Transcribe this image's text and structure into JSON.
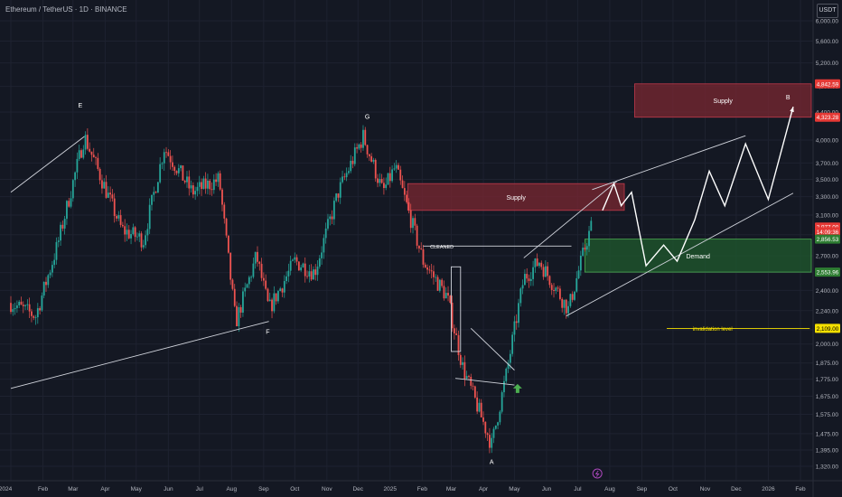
{
  "header": {
    "symbol_title": "Ethereum / TetherUS · 1D · BINANCE",
    "currency": "USDT"
  },
  "colors": {
    "background": "#141823",
    "up_candle": "#26a69a",
    "down_candle": "#ef5350",
    "supply_zone": "#7a2732",
    "demand_zone": "#1f5a2e",
    "projection": "#ffffff",
    "invalidation": "#f5e000"
  },
  "chart_data": {
    "type": "candlestick",
    "x_ticks": [
      "2024",
      "Feb",
      "Mar",
      "Apr",
      "May",
      "Jun",
      "Jul",
      "Aug",
      "Sep",
      "Oct",
      "Nov",
      "Dec",
      "2025",
      "Feb",
      "Mar",
      "Apr",
      "May",
      "Jun",
      "Jul",
      "Aug",
      "Sep",
      "Oct",
      "Nov",
      "Dec",
      "2026",
      "Feb"
    ],
    "y_ticks": [
      6000,
      5600,
      5200,
      4800,
      4400,
      4000,
      3700,
      3500,
      3300,
      3100,
      2900,
      2700,
      2550,
      2400,
      2240,
      2100,
      2000,
      1875,
      1775,
      1675,
      1575,
      1475,
      1395,
      1320
    ],
    "y_tick_labels": [
      "6,000.00",
      "5,600.00",
      "5,200.00",
      "4,800.00",
      "4,400.00",
      "4,000.00",
      "3,700.00",
      "3,500.00",
      "3,300.00",
      "3,100.00",
      "2,900.00",
      "2,700.00",
      "2,550.00",
      "2,400.00",
      "2,240.00",
      "2,100.00",
      "2,000.00",
      "1,875.00",
      "1,775.00",
      "1,675.00",
      "1,575.00",
      "1,475.00",
      "1,395.00",
      "1,320.00"
    ],
    "y_scale": "log",
    "anchor_points": [
      [
        "2024-01-01",
        2300
      ],
      [
        "2024-01-25",
        2200
      ],
      [
        "2024-02-15",
        2800
      ],
      [
        "2024-03-12",
        4050
      ],
      [
        "2024-04-17",
        2950
      ],
      [
        "2024-05-08",
        2850
      ],
      [
        "2024-05-28",
        3900
      ],
      [
        "2024-06-24",
        3350
      ],
      [
        "2024-07-20",
        3500
      ],
      [
        "2024-08-05",
        2150
      ],
      [
        "2024-08-25",
        2700
      ],
      [
        "2024-09-06",
        2250
      ],
      [
        "2024-10-01",
        2650
      ],
      [
        "2024-10-20",
        2550
      ],
      [
        "2024-11-12",
        3350
      ],
      [
        "2024-12-06",
        4050
      ],
      [
        "2024-12-25",
        3350
      ],
      [
        "2025-01-06",
        3650
      ],
      [
        "2025-02-02",
        2650
      ],
      [
        "2025-02-25",
        2350
      ],
      [
        "2025-03-12",
        1850
      ],
      [
        "2025-04-09",
        1420
      ],
      [
        "2025-04-23",
        1800
      ],
      [
        "2025-05-10",
        2500
      ],
      [
        "2025-05-25",
        2650
      ],
      [
        "2025-06-22",
        2250
      ],
      [
        "2025-07-10",
        2850
      ],
      [
        "2025-07-14",
        2977
      ]
    ],
    "price_labels": [
      {
        "text": "4,842.59",
        "value": 4842.59,
        "color": "#e53935"
      },
      {
        "text": "4,323.28",
        "value": 4323.28,
        "color": "#e53935"
      },
      {
        "text": "2,977.00",
        "value": 2977,
        "color": "#e53935"
      },
      {
        "text": "14:09:36",
        "value": 2930,
        "color": "#e53935"
      },
      {
        "text": "2,856.53",
        "value": 2856.53,
        "color": "#2e7d32"
      },
      {
        "text": "2,553.96",
        "value": 2553.96,
        "color": "#2e7d32"
      },
      {
        "text": "2,109.00",
        "value": 2109,
        "color": "#f5e000"
      }
    ],
    "zones": [
      {
        "label": "Supply",
        "from_price": 4323.28,
        "to_price": 4842.59,
        "start": "2025-08-25",
        "end": "2026-02-25",
        "color": "#7a2732"
      },
      {
        "label": "Supply",
        "from_price": 3150,
        "to_price": 3450,
        "start": "2025-01-18",
        "end": "2025-08-15",
        "color": "#7a2732"
      },
      {
        "label": "Demand",
        "from_price": 2553.96,
        "to_price": 2856.53,
        "start": "2025-07-08",
        "end": "2026-02-25",
        "color": "#1f5a2e"
      }
    ],
    "wave_labels": [
      {
        "text": "E",
        "date": "2024-03-08",
        "value": 4470
      },
      {
        "text": "F",
        "date": "2024-09-05",
        "value": 2070
      },
      {
        "text": "G",
        "date": "2024-12-10",
        "value": 4300
      },
      {
        "text": "A",
        "date": "2025-04-09",
        "value": 1330
      },
      {
        "text": "B",
        "date": "2026-01-20",
        "value": 4590
      }
    ],
    "annotations": [
      {
        "text": "CLEANED",
        "date": "2025-02-20",
        "value": 2790
      },
      {
        "text": "invalidation level",
        "date": "2025-10-20",
        "value": 2109
      }
    ],
    "projection_path": [
      [
        "2025-07-25",
        3150
      ],
      [
        "2025-08-05",
        3450
      ],
      [
        "2025-08-12",
        3200
      ],
      [
        "2025-08-22",
        3350
      ],
      [
        "2025-09-05",
        2610
      ],
      [
        "2025-09-22",
        2800
      ],
      [
        "2025-10-05",
        2650
      ],
      [
        "2025-10-22",
        3050
      ],
      [
        "2025-11-05",
        3600
      ],
      [
        "2025-11-20",
        3200
      ],
      [
        "2025-12-10",
        3950
      ],
      [
        "2026-01-01",
        3270
      ],
      [
        "2026-01-25",
        4480
      ]
    ]
  }
}
